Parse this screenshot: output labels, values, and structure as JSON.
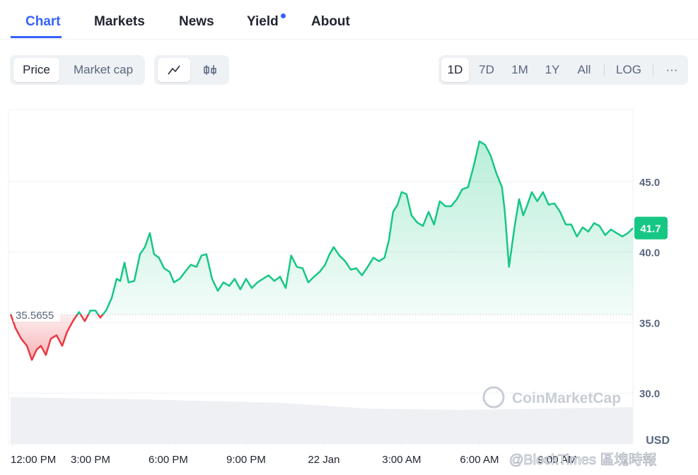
{
  "tabs": {
    "items": [
      "Chart",
      "Markets",
      "News",
      "Yield",
      "About"
    ]
  },
  "toolbar": {
    "metric_toggle": [
      "Price",
      "Market cap"
    ],
    "ranges": [
      "1D",
      "7D",
      "1M",
      "1Y",
      "All"
    ],
    "log": "LOG",
    "more": "···"
  },
  "chart_data": {
    "type": "line",
    "x": [
      -0.08,
      0.11,
      0.33,
      0.55,
      0.74,
      0.93,
      1.09,
      1.28,
      1.47,
      1.69,
      1.91,
      2.1,
      2.32,
      2.56,
      2.78,
      3.0,
      3.19,
      3.38,
      3.6,
      3.82,
      4.01,
      4.15,
      4.31,
      4.47,
      4.69,
      4.91,
      5.1,
      5.29,
      5.45,
      5.64,
      5.84,
      6.05,
      6.22,
      6.44,
      6.65,
      6.87,
      7.09,
      7.28,
      7.47,
      7.69,
      7.91,
      8.13,
      8.35,
      8.56,
      8.78,
      9.0,
      9.22,
      9.44,
      9.65,
      9.87,
      10.09,
      10.31,
      10.53,
      10.74,
      10.96,
      11.18,
      11.4,
      11.62,
      11.84,
      12.05,
      12.22,
      12.38,
      12.6,
      12.82,
      13.04,
      13.25,
      13.47,
      13.69,
      13.91,
      14.13,
      14.34,
      14.51,
      14.67,
      14.84,
      15.0,
      15.19,
      15.38,
      15.6,
      15.82,
      16.04,
      16.25,
      16.47,
      16.69,
      16.91,
      17.13,
      17.34,
      17.56,
      17.78,
      18.0,
      18.22,
      18.43,
      18.65,
      18.87,
      18.98,
      19.14,
      19.36,
      19.53,
      19.69,
      19.85,
      20.02,
      20.23,
      20.45,
      20.67,
      20.89,
      21.11,
      21.33,
      21.54,
      21.76,
      21.98,
      22.2,
      22.42,
      22.63,
      22.85,
      23.07,
      23.29,
      23.51,
      23.73,
      23.92
    ],
    "values": [
      35.6,
      34.6,
      33.85,
      33.35,
      32.35,
      33.1,
      33.35,
      32.7,
      33.85,
      34.1,
      33.35,
      34.35,
      35.1,
      35.75,
      35.1,
      35.85,
      35.85,
      35.35,
      35.85,
      36.75,
      38.1,
      37.95,
      39.25,
      37.85,
      37.95,
      39.85,
      40.35,
      41.35,
      39.85,
      39.6,
      38.85,
      38.6,
      37.85,
      38.1,
      38.6,
      39.1,
      38.95,
      39.75,
      39.85,
      38.1,
      37.25,
      37.85,
      37.6,
      38.1,
      37.35,
      38.1,
      37.45,
      37.85,
      38.1,
      38.35,
      37.95,
      38.25,
      37.45,
      39.75,
      38.95,
      38.85,
      37.85,
      38.25,
      38.6,
      39.1,
      39.85,
      40.35,
      39.75,
      39.35,
      38.75,
      38.85,
      38.35,
      38.95,
      39.6,
      39.35,
      39.6,
      40.85,
      42.85,
      43.35,
      44.25,
      44.1,
      42.6,
      42.1,
      41.85,
      42.85,
      41.95,
      43.6,
      43.25,
      43.25,
      43.75,
      44.45,
      44.6,
      46.1,
      47.85,
      47.6,
      46.85,
      45.6,
      44.6,
      42.85,
      38.95,
      41.85,
      43.75,
      42.6,
      43.35,
      44.25,
      43.6,
      44.25,
      43.35,
      43.45,
      42.85,
      41.95,
      41.95,
      41.1,
      41.75,
      41.45,
      42.05,
      41.85,
      41.2,
      41.6,
      41.35,
      41.1,
      41.35,
      41.7
    ],
    "up_color": "#16c784",
    "down_color": "#ea3943",
    "reference_price": 35.5655,
    "current_price": 41.7,
    "xlim": [
      -0.08,
      23.92
    ],
    "ylim": [
      26.4,
      50.1
    ],
    "xticks": [
      {
        "value": 0,
        "label": "12:00 PM"
      },
      {
        "value": 3,
        "label": "3:00 PM"
      },
      {
        "value": 6,
        "label": "6:00 PM"
      },
      {
        "value": 9,
        "label": "9:00 PM"
      },
      {
        "value": 12,
        "label": "22 Jan"
      },
      {
        "value": 15,
        "label": "3:00 AM"
      },
      {
        "value": 18,
        "label": "6:00 AM"
      },
      {
        "value": 21,
        "label": "9:00 AM"
      }
    ],
    "yticks": [
      {
        "value": 30,
        "label": "30.0"
      },
      {
        "value": 35,
        "label": "35.0"
      },
      {
        "value": 40,
        "label": "40.0"
      },
      {
        "value": 45,
        "label": "45.0"
      }
    ],
    "grid": true,
    "y_unit_label": "USD",
    "watermark": "CoinMarketCap"
  },
  "watermark": "@BlockTimes 區塊時報"
}
